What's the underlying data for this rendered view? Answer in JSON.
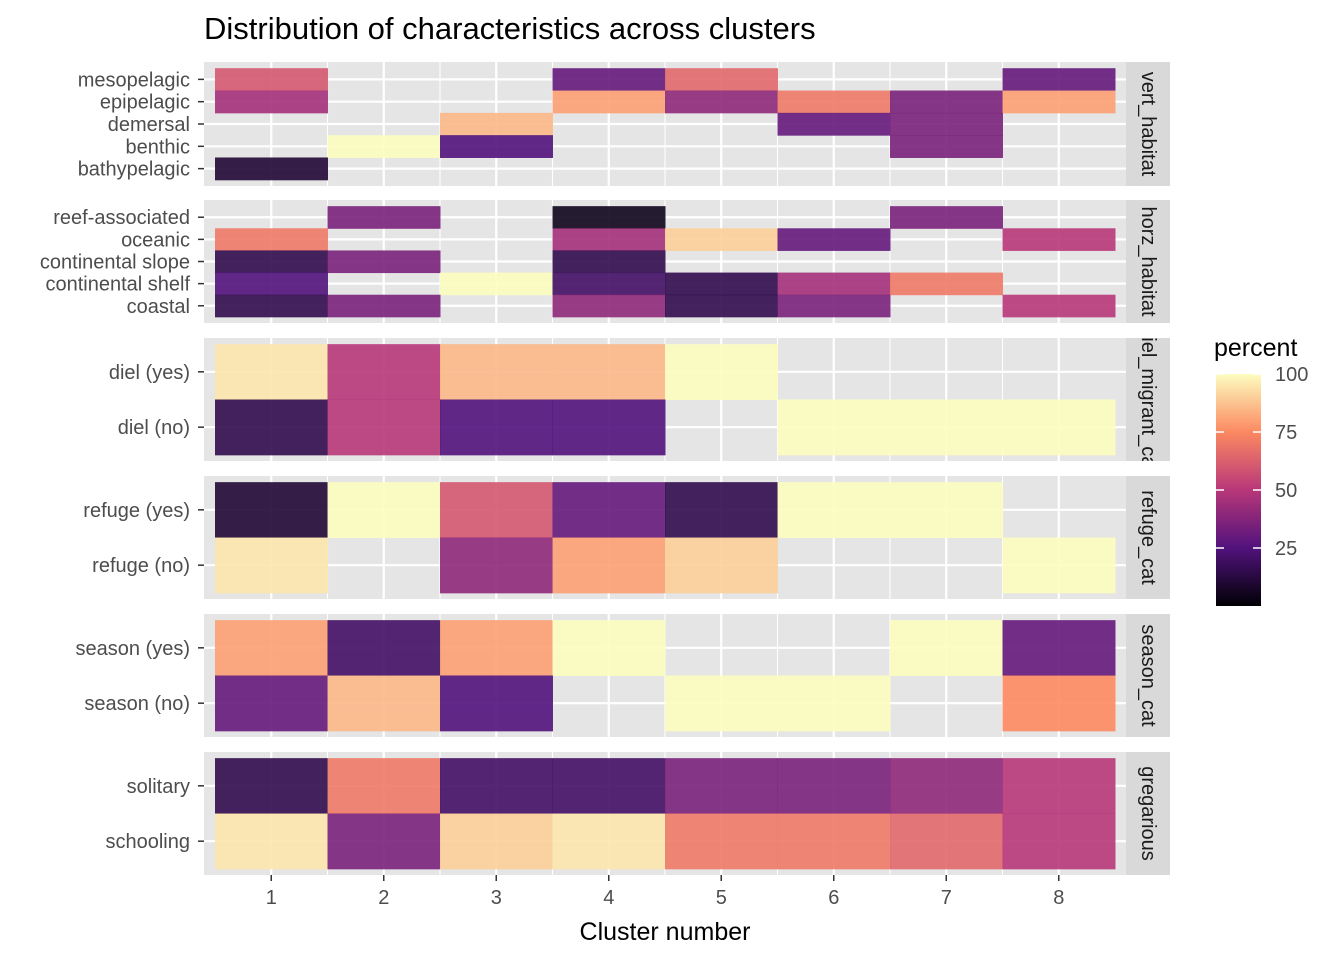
{
  "chart_data": {
    "type": "heatmap",
    "title": "Distribution of characteristics across clusters",
    "xlabel": "Cluster number",
    "x": [
      "1",
      "2",
      "3",
      "4",
      "5",
      "6",
      "7",
      "8"
    ],
    "colorscale": "magma",
    "color_range": [
      0,
      100
    ],
    "legend": {
      "title": "percent",
      "ticks": [
        25,
        50,
        75,
        100
      ],
      "placement": "right"
    },
    "grid": true,
    "facets": [
      {
        "strip": "vert_habitat",
        "rows": [
          "mesopelagic",
          "epipelagic",
          "demersal",
          "benthic",
          "bathypelagic"
        ],
        "values": [
          [
            60,
            null,
            null,
            30,
            65,
            null,
            null,
            30
          ],
          [
            45,
            null,
            null,
            80,
            40,
            70,
            35,
            80
          ],
          [
            null,
            null,
            85,
            null,
            null,
            30,
            35,
            null
          ],
          [
            null,
            100,
            25,
            null,
            null,
            null,
            35,
            null
          ],
          [
            10,
            null,
            null,
            null,
            null,
            null,
            null,
            null
          ]
        ]
      },
      {
        "strip": "horz_habitat",
        "rows": [
          "reef-associated",
          "oceanic",
          "continental slope",
          "continental shelf",
          "coastal"
        ],
        "values": [
          [
            null,
            35,
            null,
            5,
            null,
            null,
            35,
            null
          ],
          [
            70,
            null,
            null,
            45,
            90,
            30,
            null,
            50
          ],
          [
            15,
            35,
            null,
            15,
            null,
            null,
            null,
            null
          ],
          [
            25,
            null,
            100,
            20,
            15,
            45,
            70,
            null
          ],
          [
            15,
            35,
            null,
            40,
            15,
            35,
            null,
            50
          ]
        ]
      },
      {
        "strip": "diel_migrant_cat",
        "rows": [
          "diel (yes)",
          "diel (no)"
        ],
        "values": [
          [
            95,
            50,
            85,
            85,
            100,
            null,
            null,
            null
          ],
          [
            15,
            50,
            25,
            25,
            null,
            100,
            100,
            100
          ]
        ]
      },
      {
        "strip": "refuge_cat",
        "rows": [
          "refuge (yes)",
          "refuge (no)"
        ],
        "values": [
          [
            10,
            100,
            60,
            30,
            15,
            100,
            100,
            null
          ],
          [
            95,
            null,
            40,
            80,
            90,
            null,
            null,
            100
          ]
        ]
      },
      {
        "strip": "season_cat",
        "rows": [
          "season (yes)",
          "season (no)"
        ],
        "values": [
          [
            80,
            20,
            80,
            100,
            null,
            null,
            100,
            30
          ],
          [
            30,
            85,
            25,
            null,
            100,
            100,
            null,
            75
          ]
        ]
      },
      {
        "strip": "gregarious",
        "rows": [
          "solitary",
          "schooling"
        ],
        "values": [
          [
            15,
            70,
            20,
            20,
            35,
            35,
            40,
            50
          ],
          [
            95,
            35,
            90,
            95,
            70,
            70,
            65,
            50
          ]
        ]
      }
    ]
  },
  "colors": {
    "panel_bg": "#e5e5e5",
    "grid": "#ffffff",
    "strip_bg": "#d9d9d9",
    "na": "#e5e5e5"
  }
}
